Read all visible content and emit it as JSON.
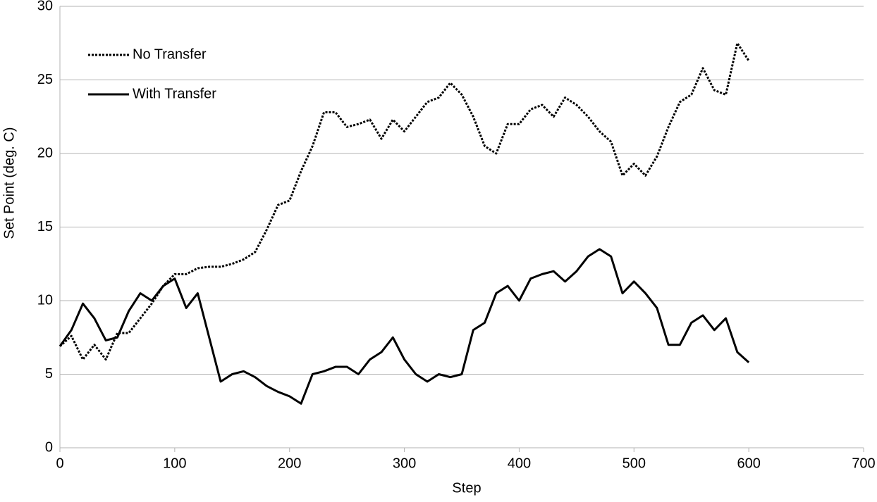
{
  "chart_data": {
    "type": "line",
    "x_label": "Step",
    "y_label": "Set Point (deg. C)",
    "x": [
      0,
      10,
      20,
      30,
      40,
      50,
      60,
      70,
      80,
      90,
      100,
      110,
      120,
      130,
      140,
      150,
      160,
      170,
      180,
      190,
      200,
      210,
      220,
      230,
      240,
      250,
      260,
      270,
      280,
      290,
      300,
      310,
      320,
      330,
      340,
      350,
      360,
      370,
      380,
      390,
      400,
      410,
      420,
      430,
      440,
      450,
      460,
      470,
      480,
      490,
      500,
      510,
      520,
      530,
      540,
      550,
      560,
      570,
      580,
      590,
      600
    ],
    "series": [
      {
        "name": "No Transfer",
        "color": "#000000",
        "style": "dotted",
        "values": [
          6.9,
          7.6,
          6.0,
          7.0,
          6.0,
          7.8,
          7.8,
          8.8,
          9.8,
          11.0,
          11.8,
          11.8,
          12.2,
          12.3,
          12.3,
          12.5,
          12.8,
          13.3,
          14.8,
          16.5,
          16.8,
          18.8,
          20.5,
          22.8,
          22.8,
          21.8,
          22.0,
          22.3,
          21.0,
          22.3,
          21.5,
          22.5,
          23.5,
          23.8,
          24.8,
          24.0,
          22.5,
          20.5,
          20.0,
          22.0,
          22.0,
          23.0,
          23.3,
          22.5,
          23.8,
          23.3,
          22.5,
          21.5,
          20.8,
          18.5,
          19.3,
          18.5,
          19.8,
          21.8,
          23.5,
          24.0,
          25.8,
          24.3,
          24.0,
          27.5,
          26.3
        ]
      },
      {
        "name": "With Transfer",
        "color": "#000000",
        "style": "solid",
        "values": [
          6.9,
          8.0,
          9.8,
          8.8,
          7.3,
          7.5,
          9.3,
          10.5,
          10.0,
          11.0,
          11.5,
          9.5,
          10.5,
          7.5,
          4.5,
          5.0,
          5.2,
          4.8,
          4.2,
          3.8,
          3.5,
          3.0,
          5.0,
          5.2,
          5.5,
          5.5,
          5.0,
          6.0,
          6.5,
          7.5,
          6.0,
          5.0,
          4.5,
          5.0,
          4.8,
          5.0,
          8.0,
          8.5,
          10.5,
          11.0,
          10.0,
          11.5,
          11.8,
          12.0,
          11.3,
          12.0,
          13.0,
          13.5,
          13.0,
          10.5,
          11.3,
          10.5,
          9.5,
          7.0,
          7.0,
          8.5,
          9.0,
          8.0,
          8.8,
          6.5,
          5.8
        ]
      }
    ],
    "xlim": [
      0,
      700
    ],
    "xticks": [
      0,
      100,
      200,
      300,
      400,
      500,
      600,
      700
    ],
    "ylim": [
      0,
      30
    ],
    "yticks": [
      0,
      5,
      10,
      15,
      20,
      25,
      30
    ],
    "grid": true,
    "legend": "top-left"
  }
}
